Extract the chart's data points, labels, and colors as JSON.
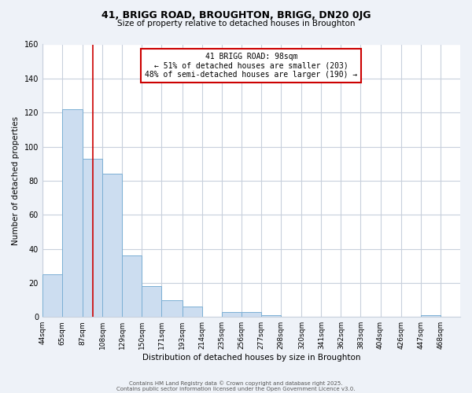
{
  "title": "41, BRIGG ROAD, BROUGHTON, BRIGG, DN20 0JG",
  "subtitle": "Size of property relative to detached houses in Broughton",
  "xlabel": "Distribution of detached houses by size in Broughton",
  "ylabel": "Number of detached properties",
  "bar_left_edges": [
    44,
    65,
    87,
    108,
    129,
    150,
    171,
    193,
    214,
    235,
    256,
    277,
    298,
    320,
    341,
    362,
    383,
    404,
    426,
    447,
    468
  ],
  "bar_heights": [
    25,
    122,
    93,
    84,
    36,
    18,
    10,
    6,
    0,
    3,
    3,
    1,
    0,
    0,
    0,
    0,
    0,
    0,
    0,
    1,
    0
  ],
  "bar_color": "#ccddf0",
  "bar_edgecolor": "#7bafd4",
  "red_line_x": 98,
  "ylim": [
    0,
    160
  ],
  "yticks": [
    0,
    20,
    40,
    60,
    80,
    100,
    120,
    140,
    160
  ],
  "xtick_labels": [
    "44sqm",
    "65sqm",
    "87sqm",
    "108sqm",
    "129sqm",
    "150sqm",
    "171sqm",
    "193sqm",
    "214sqm",
    "235sqm",
    "256sqm",
    "277sqm",
    "298sqm",
    "320sqm",
    "341sqm",
    "362sqm",
    "383sqm",
    "404sqm",
    "426sqm",
    "447sqm",
    "468sqm"
  ],
  "annotation_title": "41 BRIGG ROAD: 98sqm",
  "annotation_line1": "← 51% of detached houses are smaller (203)",
  "annotation_line2": "48% of semi-detached houses are larger (190) →",
  "annotation_box_color": "#ffffff",
  "annotation_box_edgecolor": "#cc0000",
  "footer_line1": "Contains HM Land Registry data © Crown copyright and database right 2025.",
  "footer_line2": "Contains public sector information licensed under the Open Government Licence v3.0.",
  "background_color": "#eef2f8",
  "plot_background_color": "#ffffff",
  "grid_color": "#c8d0dc"
}
